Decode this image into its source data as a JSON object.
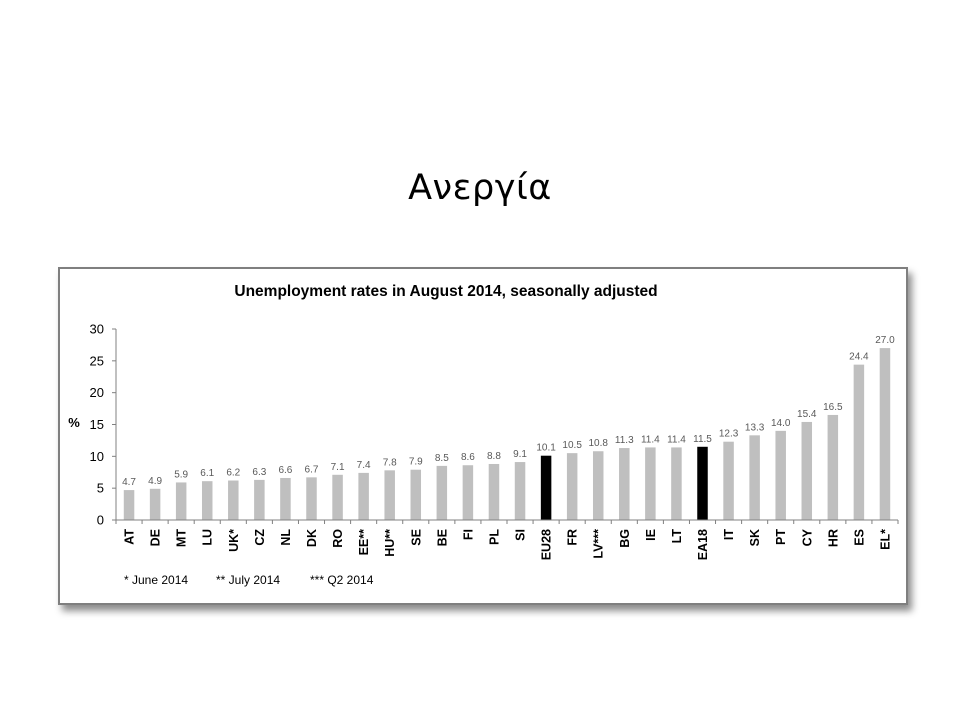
{
  "slide": {
    "title": "Ανεργία"
  },
  "colors": {
    "bar_default": "#bfbfbf",
    "bar_highlight": "#000000",
    "axis": "#808080",
    "value_label": "#595959",
    "frame_border": "#7f7f7f"
  },
  "chart_data": {
    "type": "bar",
    "title": "Unemployment rates in August 2014, seasonally adjusted",
    "xlabel": "",
    "ylabel": "%",
    "ylim": [
      0,
      30
    ],
    "yticks": [
      0,
      5,
      10,
      15,
      20,
      25,
      30
    ],
    "grid": false,
    "legend": "none",
    "categories": [
      "AT",
      "DE",
      "MT",
      "LU",
      "UK*",
      "CZ",
      "NL",
      "DK",
      "RO",
      "EE**",
      "HU**",
      "SE",
      "BE",
      "FI",
      "PL",
      "SI",
      "EU28",
      "FR",
      "LV***",
      "BG",
      "IE",
      "LT",
      "EA18",
      "IT",
      "SK",
      "PT",
      "CY",
      "HR",
      "ES",
      "EL*"
    ],
    "values": [
      4.7,
      4.9,
      5.9,
      6.1,
      6.2,
      6.3,
      6.6,
      6.7,
      7.1,
      7.4,
      7.8,
      7.9,
      8.5,
      8.6,
      8.8,
      9.1,
      10.1,
      10.5,
      10.8,
      11.3,
      11.4,
      11.4,
      11.5,
      12.3,
      13.3,
      14.0,
      15.4,
      16.5,
      24.4,
      27.0
    ],
    "value_labels": [
      "4.7",
      "4.9",
      "5.9",
      "6.1",
      "6.2",
      "6.3",
      "6.6",
      "6.7",
      "7.1",
      "7.4",
      "7.8",
      "7.9",
      "8.5",
      "8.6",
      "8.8",
      "9.1",
      "10.1",
      "10.5",
      "10.8",
      "11.3",
      "11.4",
      "11.4",
      "11.5",
      "12.3",
      "13.3",
      "14.0",
      "15.4",
      "16.5",
      "24.4",
      "27.0"
    ],
    "highlighted_categories": [
      "EU28",
      "EA18"
    ],
    "footnotes": [
      "* June 2014",
      "** July 2014",
      "*** Q2 2014"
    ]
  }
}
